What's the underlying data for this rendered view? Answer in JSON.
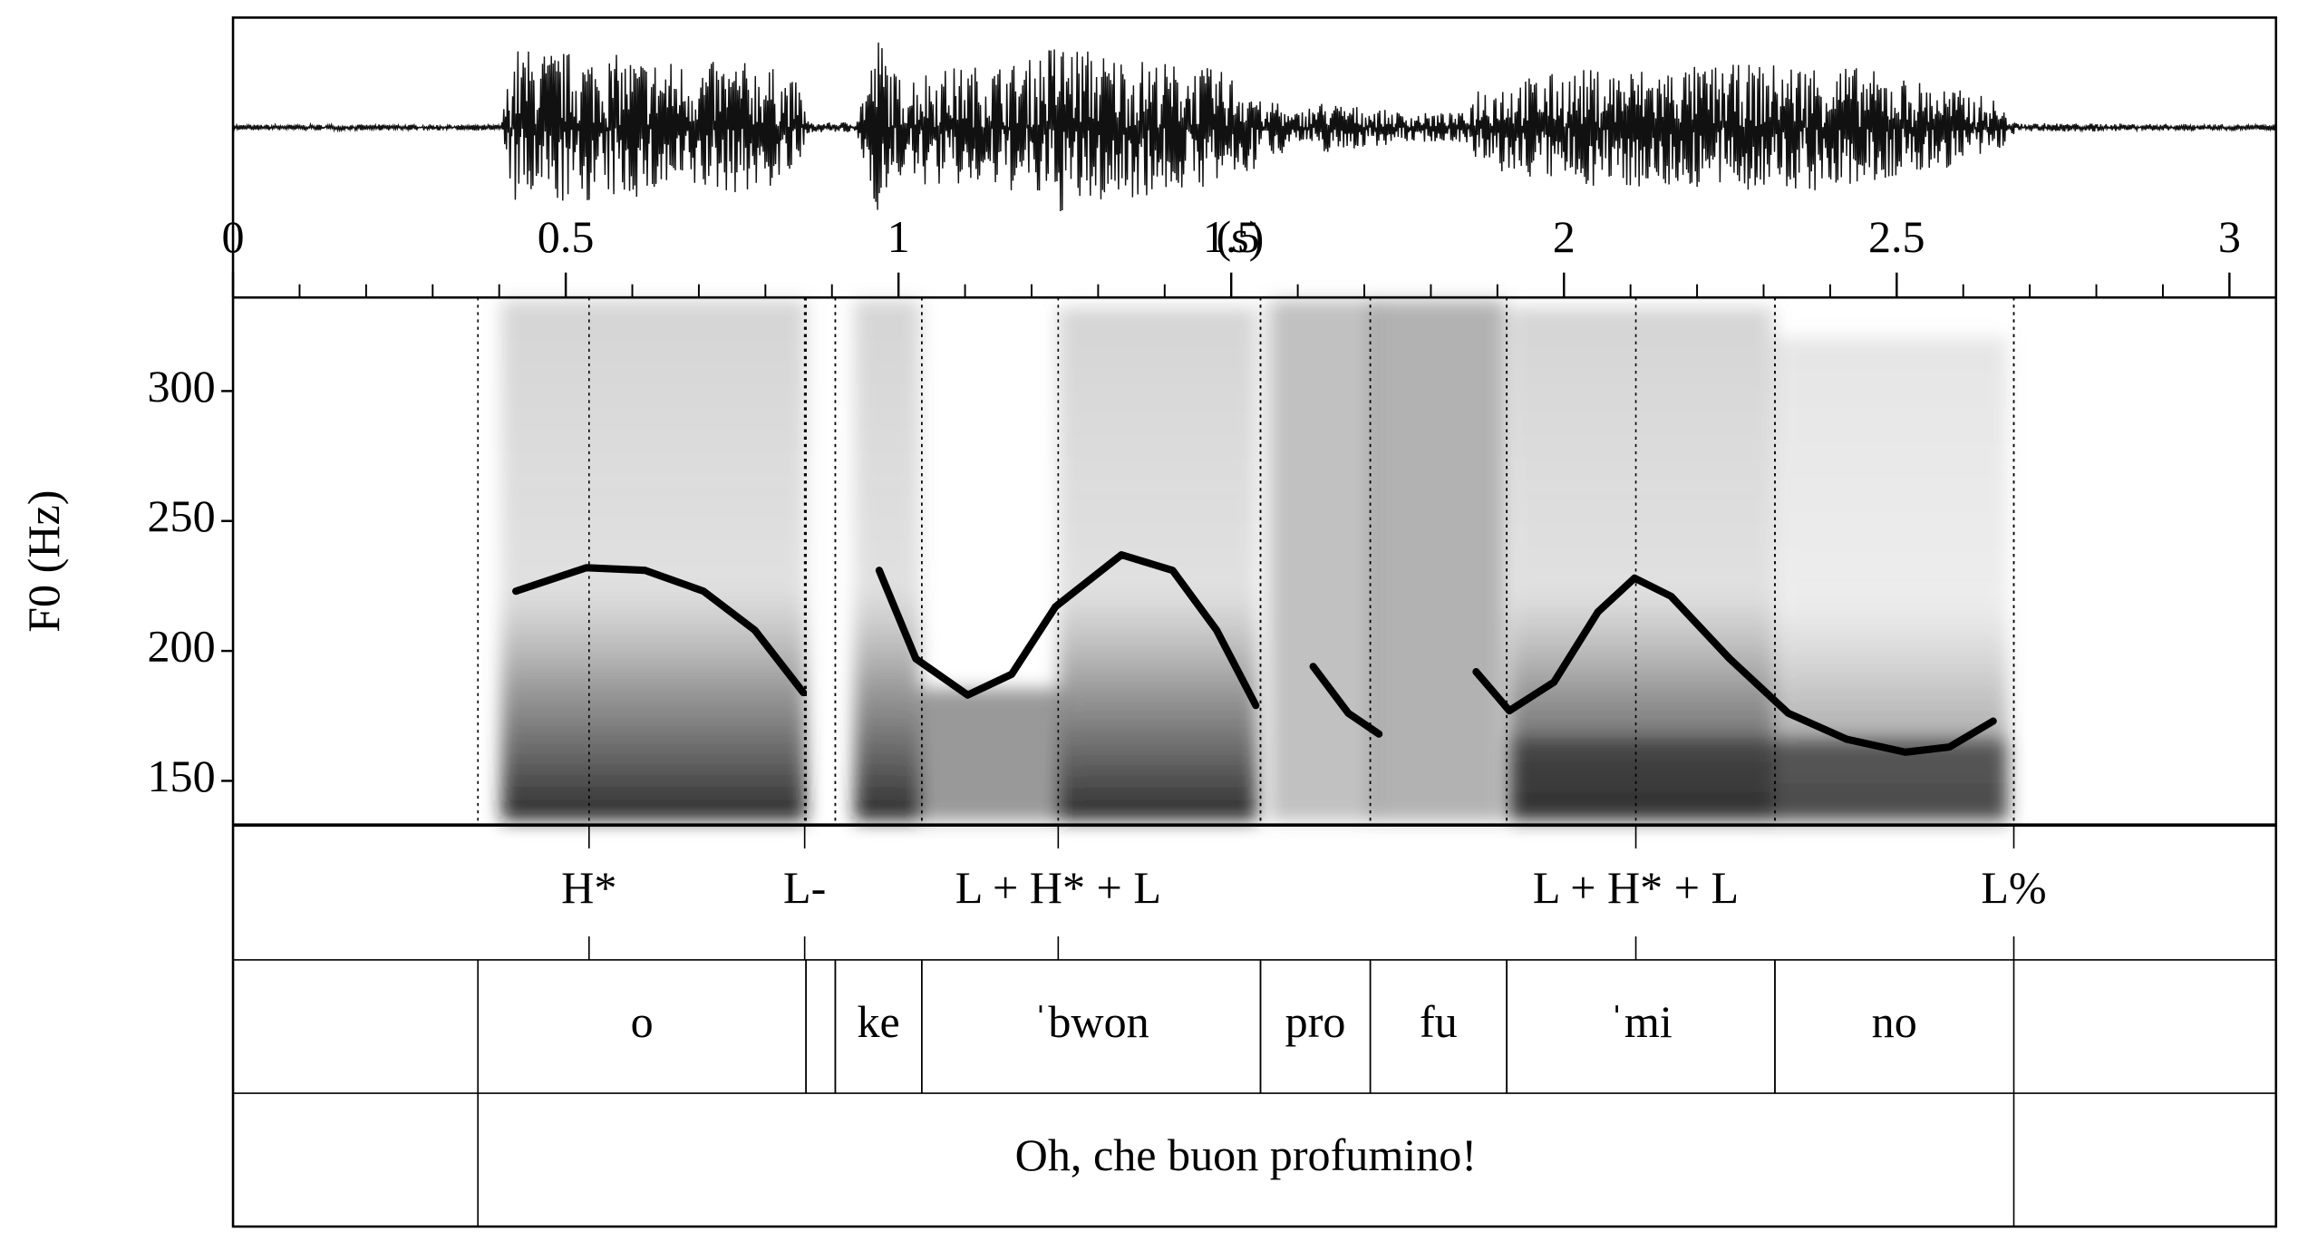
{
  "chart_data": {
    "type": "line",
    "xlabel": "(s)",
    "ylabel": "F0 (Hz)",
    "xlim": [
      0,
      3.07
    ],
    "xticks": [
      0,
      0.5,
      1,
      1.5,
      2,
      2.5,
      3
    ],
    "xminorticks": [
      0.1,
      0.2,
      0.3,
      0.4,
      0.6,
      0.7,
      0.8,
      0.9,
      1.1,
      1.2,
      1.3,
      1.4,
      1.6,
      1.7,
      1.8,
      1.9,
      2.1,
      2.2,
      2.3,
      2.4,
      2.6,
      2.7,
      2.8,
      2.9
    ],
    "ylim": [
      133,
      336
    ],
    "yticks": [
      150,
      200,
      250,
      300
    ],
    "x": [
      0.425,
      0.531,
      0.619,
      0.707,
      0.784,
      0.857,
      null,
      0.971,
      1.026,
      1.104,
      1.17,
      1.236,
      1.335,
      1.412,
      1.478,
      1.537,
      null,
      1.623,
      1.676,
      1.722,
      null,
      1.868,
      1.918,
      1.985,
      2.051,
      2.106,
      2.161,
      2.249,
      2.337,
      2.425,
      2.513,
      2.579,
      2.645
    ],
    "series": [
      {
        "color": "#000000",
        "values": [
          223,
          232,
          231,
          223,
          208,
          184,
          null,
          231,
          197,
          183,
          191,
          217,
          237,
          231,
          208,
          179,
          null,
          194,
          176,
          168,
          null,
          192,
          177,
          188,
          215,
          228,
          221,
          197,
          176,
          166,
          161,
          163,
          173
        ]
      }
    ],
    "tiers": [
      {
        "points": [
          {
            "time": 0.535,
            "label": "H*"
          },
          {
            "time": 0.859,
            "label": "L-"
          },
          {
            "time": 1.24,
            "label": "L + H* + L"
          },
          {
            "time": 2.108,
            "label": "L + H* + L"
          },
          {
            "time": 2.676,
            "label": "L%"
          }
        ]
      },
      {
        "intervals": [
          {
            "start": 0.368,
            "end": 0.861,
            "label": "o"
          },
          {
            "start": 0.861,
            "end": 0.905,
            "label": null
          },
          {
            "start": 0.905,
            "end": 1.035,
            "label": "ke"
          },
          {
            "start": 1.035,
            "end": 1.544,
            "label": "ˈbwon"
          },
          {
            "start": 1.544,
            "end": 1.709,
            "label": "pro"
          },
          {
            "start": 1.709,
            "end": 1.914,
            "label": "fu"
          },
          {
            "start": 1.914,
            "end": 2.317,
            "label": "ˈmi"
          },
          {
            "start": 2.317,
            "end": 2.676,
            "label": "no"
          }
        ]
      },
      {
        "intervals": [
          {
            "start": 0.368,
            "end": 2.676,
            "label": "Oh, che buon profumino!"
          }
        ]
      }
    ]
  }
}
